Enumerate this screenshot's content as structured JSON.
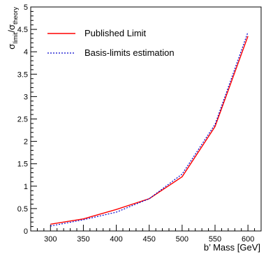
{
  "chart_data": {
    "type": "line",
    "xlabel": "b’ Mass [GeV]",
    "ylabel": {
      "main": "σ",
      "sub1": "limit",
      "sep": "/σ",
      "sub2": "theory"
    },
    "xlim": [
      270,
      620
    ],
    "ylim": [
      0,
      5
    ],
    "xticks": [
      300,
      350,
      400,
      450,
      500,
      550,
      600
    ],
    "yticks": [
      0,
      0.5,
      1,
      1.5,
      2,
      2.5,
      3,
      3.5,
      4,
      4.5,
      5
    ],
    "xtick_labels": [
      "300",
      "350",
      "400",
      "450",
      "500",
      "550",
      "600"
    ],
    "ytick_labels": [
      "0",
      "0.5",
      "1",
      "1.5",
      "2",
      "2.5",
      "3",
      "3.5",
      "4",
      "4.5",
      "5"
    ],
    "grid": false,
    "legend_position": "top-left",
    "series": [
      {
        "name": "Published Limit",
        "color": "#ff0000",
        "style": "solid",
        "x": [
          300,
          350,
          400,
          450,
          500,
          550,
          600
        ],
        "y": [
          0.15,
          0.27,
          0.48,
          0.72,
          1.21,
          2.33,
          4.35
        ]
      },
      {
        "name": "Basis-limits estimation",
        "color": "#0000cc",
        "style": "dotted",
        "x": [
          300,
          350,
          400,
          450,
          500,
          550,
          600
        ],
        "y": [
          0.11,
          0.25,
          0.42,
          0.72,
          1.27,
          2.38,
          4.44
        ]
      }
    ]
  }
}
